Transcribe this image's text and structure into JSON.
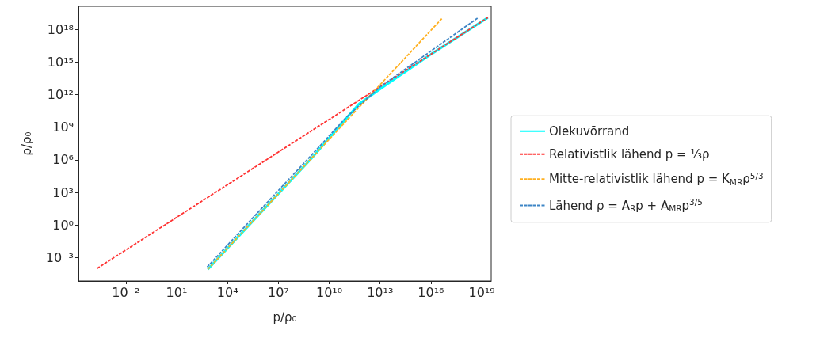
{
  "chart_data": {
    "type": "line",
    "xlabel": "p/ρ₀",
    "ylabel": "ρ/ρ₀",
    "log": "xy",
    "grid": false,
    "legend": "right",
    "marker": "none",
    "xlim": [
      1.6e-05,
      3.6e+19
    ],
    "ylim": [
      7e-06,
      1.3e+20
    ],
    "xticks": [
      {
        "value": 0.01,
        "label": "10⁻²"
      },
      {
        "value": 10,
        "label": "10¹"
      },
      {
        "value": 10000.0,
        "label": "10⁴"
      },
      {
        "value": 10000000.0,
        "label": "10⁷"
      },
      {
        "value": 10000000000.0,
        "label": "10¹⁰"
      },
      {
        "value": 10000000000000.0,
        "label": "10¹³"
      },
      {
        "value": 1e+16,
        "label": "10¹⁶"
      },
      {
        "value": 1e+19,
        "label": "10¹⁹"
      }
    ],
    "yticks": [
      {
        "value": 0.001,
        "label": "10⁻³"
      },
      {
        "value": 1,
        "label": "10⁰"
      },
      {
        "value": 1000,
        "label": "10³"
      },
      {
        "value": 1000000.0,
        "label": "10⁶"
      },
      {
        "value": 1000000000.0,
        "label": "10⁹"
      },
      {
        "value": 1000000000000.0,
        "label": "10¹²"
      },
      {
        "value": 1000000000000000.0,
        "label": "10¹⁵"
      },
      {
        "value": 1e+18,
        "label": "10¹⁸"
      }
    ],
    "series": [
      {
        "name": "Olekuvõrrand",
        "color": "#00ffff",
        "line_style": "solid",
        "x": [
          690.0,
          1000000.0,
          1000000000.0,
          100000000000.0,
          560000000000.0,
          10000000000000.0,
          1e+16,
          2.3e+19
        ],
        "values": [
          8.3e-05,
          16.0,
          1600000.0,
          6200000000.0,
          130000000000.0,
          3200000000000.0,
          5000000000000000.0,
          1.2e+19
        ]
      },
      {
        "name": "Relativistlik lähend p = ⅓ρ",
        "color": "#ff3333",
        "line_style": "dashed",
        "x": [
          0.0002,
          2.3e+19
        ],
        "values": [
          0.0001,
          1.2e+19
        ]
      },
      {
        "name": "Mitte-relativistlik lähend p = K$_{MR}$ρ$^{5/3}$",
        "color": "#ffb020",
        "line_style": "dashed",
        "x": [
          690.0,
          4.5e+16
        ],
        "values": [
          8.3e-05,
          1e+19
        ]
      },
      {
        "name": "Lähend ρ = A$_{R}$p + A$_{MR}$p$^{3/5}$",
        "color": "#3d85c6",
        "line_style": "dashed",
        "x": [
          630.0,
          1000000.0,
          1000000000.0,
          100000000000.0,
          1000000000000.0,
          10000000000000.0,
          1e+16,
          6.3e+18
        ],
        "values": [
          0.000135,
          32.0,
          3200000.0,
          7900000000.0,
          200000000000.0,
          5000000000000.0,
          1e+16,
          1.2e+19
        ]
      }
    ]
  }
}
